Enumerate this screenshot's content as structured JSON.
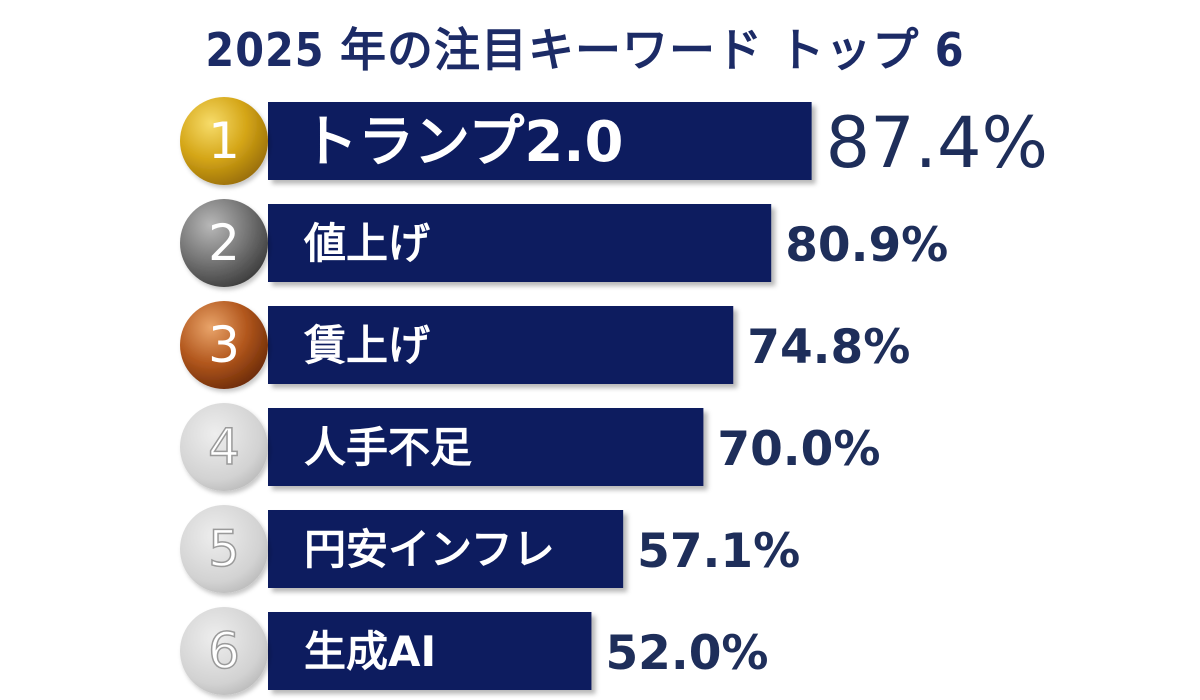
{
  "colors": {
    "bar": "#0f1a5e",
    "title": "#1c2b66",
    "value_text": "#1e2e5a",
    "label_text": "#ffffff",
    "gold": "#c99a12",
    "silver": "#707070",
    "bronze": "#a8501a",
    "plain_rank": "#cfcfcf"
  },
  "chart_data": {
    "type": "bar",
    "orientation": "horizontal",
    "title": "2025 年の注目キーワード トップ 6",
    "xlabel": "",
    "ylabel": "",
    "unit": "%",
    "grid": false,
    "legend": "none",
    "ranks": [
      "1",
      "2",
      "3",
      "4",
      "5",
      "6"
    ],
    "categories": [
      "トランプ2.0",
      "値上げ",
      "賃上げ",
      "人手不足",
      "円安インフレ",
      "生成AI"
    ],
    "values": [
      87.4,
      80.9,
      74.8,
      70.0,
      57.1,
      52.0
    ],
    "value_labels": [
      "87.4%",
      "80.9%",
      "74.8%",
      "70.0%",
      "57.1%",
      "52.0%"
    ],
    "rank_styles": [
      "gold",
      "silver",
      "bronze",
      "plain",
      "plain",
      "plain"
    ]
  }
}
